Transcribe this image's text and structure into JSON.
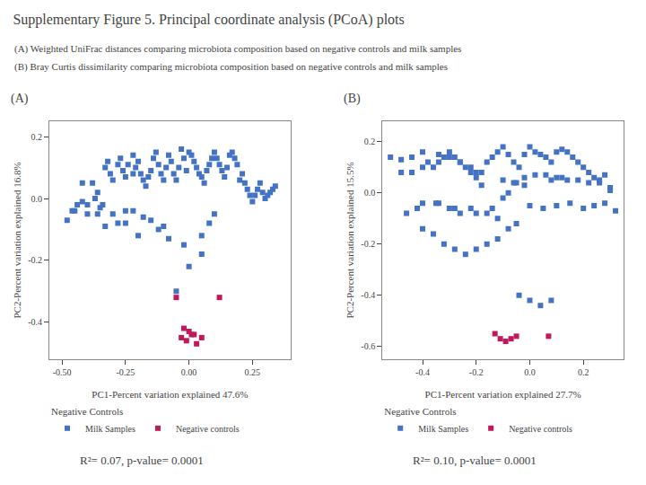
{
  "title": "Supplementary Figure 5. Principal coordinate analysis (PCoA) plots",
  "chart_data": [
    {
      "type": "scatter",
      "title": "(A)",
      "subtitle": "(A) Weighted UniFrac distances comparing microbiota composition based on negative controls and milk samples",
      "x_label": "PC1-Percent variation explained 47.6%",
      "y_label": "PC2-Percent variation explained 16.8%",
      "xlim": [
        -0.55,
        0.4
      ],
      "ylim": [
        -0.52,
        0.25
      ],
      "xticks": [
        {
          "value": -0.5,
          "label": "-0.50"
        },
        {
          "value": -0.25,
          "label": "-0.25"
        },
        {
          "value": 0.0,
          "label": "0.00"
        },
        {
          "value": 0.25,
          "label": "0.25"
        }
      ],
      "yticks": [
        -0.4,
        -0.2,
        {
          "value": 0.0,
          "label": "0.0"
        },
        0.2
      ],
      "grid": false,
      "legend": "bottom",
      "legend_title": "Negative Controls",
      "annotations": [
        "R²= 0.07, p-value= 0.0001"
      ],
      "series": [
        {
          "name": "Milk Samples",
          "color": "#4472C4",
          "marker": "square",
          "x": [
            -0.42,
            -0.38,
            -0.37,
            -0.36,
            -0.36,
            -0.34,
            -0.33,
            -0.32,
            -0.31,
            -0.3,
            -0.28,
            -0.27,
            -0.26,
            -0.25,
            -0.25,
            -0.24,
            -0.22,
            -0.22,
            -0.21,
            -0.2,
            -0.19,
            -0.18,
            -0.17,
            -0.16,
            -0.15,
            -0.14,
            -0.13,
            -0.12,
            -0.11,
            -0.1,
            -0.09,
            -0.08,
            -0.07,
            -0.06,
            -0.05,
            -0.04,
            -0.03,
            -0.02,
            -0.01,
            0.0,
            0.01,
            0.02,
            0.03,
            0.04,
            0.05,
            0.06,
            0.07,
            0.08,
            0.09,
            0.1,
            0.11,
            0.12,
            0.13,
            0.14,
            0.15,
            0.16,
            0.17,
            0.18,
            0.19,
            0.2,
            0.21,
            0.22,
            0.23,
            0.24,
            0.25,
            0.26,
            0.27,
            0.28,
            0.29,
            0.3,
            0.31,
            0.32,
            0.33,
            0.34,
            -0.05,
            0.0,
            0.05,
            -0.1,
            -0.15,
            -0.2,
            -0.25,
            -0.3,
            -0.35,
            -0.4,
            -0.45,
            -0.48,
            -0.02,
            0.1,
            0.05,
            0.08,
            -0.08,
            -0.12,
            -0.18,
            -0.22,
            -0.28,
            -0.33,
            -0.4,
            -0.42,
            -0.44,
            -0.46
          ],
          "values": [
            0.05,
            0.05,
            0.0,
            -0.05,
            0.02,
            -0.02,
            0.1,
            0.12,
            0.08,
            0.06,
            0.11,
            0.13,
            0.09,
            0.07,
            -0.04,
            0.11,
            0.08,
            0.14,
            0.1,
            0.12,
            0.08,
            0.06,
            0.04,
            0.07,
            0.09,
            0.13,
            0.15,
            0.11,
            0.08,
            0.06,
            0.1,
            0.14,
            0.12,
            0.08,
            0.06,
            0.1,
            0.16,
            0.13,
            0.09,
            0.15,
            0.14,
            0.12,
            0.1,
            0.08,
            0.07,
            0.05,
            0.09,
            0.11,
            0.13,
            0.15,
            0.13,
            0.11,
            0.09,
            0.07,
            0.1,
            0.14,
            0.15,
            0.13,
            0.11,
            0.06,
            0.08,
            0.05,
            0.03,
            0.01,
            -0.01,
            0.01,
            0.03,
            0.05,
            0.02,
            0.0,
            0.01,
            0.02,
            0.03,
            0.04,
            -0.3,
            -0.22,
            -0.18,
            -0.09,
            -0.07,
            -0.12,
            -0.08,
            -0.05,
            -0.03,
            -0.02,
            -0.04,
            -0.07,
            -0.15,
            -0.05,
            -0.12,
            -0.08,
            -0.13,
            -0.1,
            -0.06,
            -0.04,
            -0.08,
            -0.09,
            -0.05,
            -0.01,
            -0.02,
            -0.04
          ]
        },
        {
          "name": "Negative controls",
          "color": "#C0185A",
          "marker": "square",
          "x": [
            -0.05,
            -0.03,
            -0.01,
            0.01,
            0.03,
            0.05,
            -0.02,
            0.0,
            0.02,
            0.12
          ],
          "values": [
            -0.32,
            -0.45,
            -0.46,
            -0.44,
            -0.47,
            -0.45,
            -0.42,
            -0.43,
            -0.44,
            -0.32
          ]
        }
      ]
    },
    {
      "type": "scatter",
      "title": "(B)",
      "subtitle": "(B) Bray Curtis dissimilarity comparing microbiota composition based on negative controls and milk samples",
      "x_label": "PC1-Percent variation explained 27.7%",
      "y_label": "PC2-Percent variation explained 15.5%",
      "xlim": [
        -0.55,
        0.35
      ],
      "ylim": [
        -0.65,
        0.28
      ],
      "xticks": [
        -0.4,
        -0.2,
        {
          "value": 0.0,
          "label": "0.0"
        },
        0.2
      ],
      "yticks": [
        -0.6,
        -0.4,
        -0.2,
        {
          "value": 0.0,
          "label": "0.0"
        },
        0.2
      ],
      "grid": false,
      "legend": "bottom",
      "legend_title": "Negative Controls",
      "annotations": [
        "R²= 0.10, p-value= 0.0001"
      ],
      "series": [
        {
          "name": "Milk Samples",
          "color": "#4472C4",
          "marker": "square",
          "x": [
            -0.48,
            -0.44,
            -0.4,
            -0.38,
            -0.36,
            -0.34,
            -0.32,
            -0.3,
            -0.28,
            -0.26,
            -0.24,
            -0.22,
            -0.2,
            -0.18,
            -0.16,
            -0.14,
            -0.12,
            -0.1,
            -0.08,
            -0.06,
            -0.04,
            -0.02,
            0.0,
            0.02,
            0.04,
            0.06,
            0.08,
            0.1,
            0.12,
            0.14,
            0.16,
            0.18,
            0.2,
            0.22,
            0.24,
            0.26,
            0.28,
            0.3,
            -0.08,
            -0.1,
            -0.14,
            -0.2,
            -0.28,
            -0.34,
            -0.4,
            -0.42,
            -0.46,
            -0.05,
            -0.02,
            0.02,
            0.06,
            0.1,
            0.14,
            0.18,
            0.22,
            0.26,
            0.3,
            -0.05,
            -0.08,
            0.0,
            0.05,
            0.1,
            0.15,
            0.2,
            0.24,
            0.28,
            0.32,
            -0.12,
            -0.16,
            -0.22,
            -0.26,
            -0.3,
            -0.35,
            -0.18,
            0.08,
            0.12,
            -0.02,
            -0.06,
            -0.1,
            -0.2,
            -0.22,
            -0.26,
            -0.3,
            -0.34,
            -0.4,
            -0.44,
            -0.48,
            -0.52,
            -0.12,
            -0.16,
            -0.2,
            -0.24,
            -0.28,
            -0.32,
            -0.36,
            -0.4,
            -0.04,
            0.0,
            0.04,
            0.08
          ],
          "values": [
            0.08,
            0.08,
            0.1,
            0.12,
            0.1,
            0.12,
            0.14,
            0.16,
            0.14,
            0.12,
            0.1,
            0.08,
            0.06,
            0.08,
            0.12,
            0.14,
            0.16,
            0.18,
            0.15,
            0.12,
            0.1,
            0.15,
            0.18,
            0.16,
            0.15,
            0.14,
            0.12,
            0.16,
            0.17,
            0.16,
            0.14,
            0.12,
            0.1,
            0.08,
            0.06,
            0.05,
            0.07,
            0.02,
            0.0,
            -0.02,
            -0.06,
            -0.08,
            -0.06,
            -0.04,
            -0.04,
            -0.06,
            -0.08,
            0.04,
            0.06,
            0.07,
            0.07,
            0.06,
            0.05,
            0.05,
            0.04,
            0.04,
            0.01,
            -0.12,
            -0.14,
            -0.05,
            -0.06,
            -0.05,
            -0.04,
            -0.06,
            -0.05,
            -0.04,
            -0.07,
            -0.1,
            -0.08,
            -0.06,
            -0.08,
            -0.06,
            -0.04,
            0.03,
            0.05,
            0.06,
            0.03,
            0.04,
            0.05,
            0.08,
            0.1,
            0.12,
            0.14,
            0.15,
            0.16,
            0.14,
            0.13,
            0.14,
            -0.18,
            -0.2,
            -0.22,
            -0.24,
            -0.22,
            -0.2,
            -0.16,
            -0.14,
            -0.4,
            -0.42,
            -0.44,
            -0.42
          ]
        },
        {
          "name": "Negative controls",
          "color": "#C0185A",
          "marker": "square",
          "x": [
            -0.13,
            -0.11,
            -0.09,
            -0.07,
            -0.05,
            0.07
          ],
          "values": [
            -0.55,
            -0.57,
            -0.58,
            -0.57,
            -0.56,
            -0.56
          ]
        }
      ]
    }
  ]
}
